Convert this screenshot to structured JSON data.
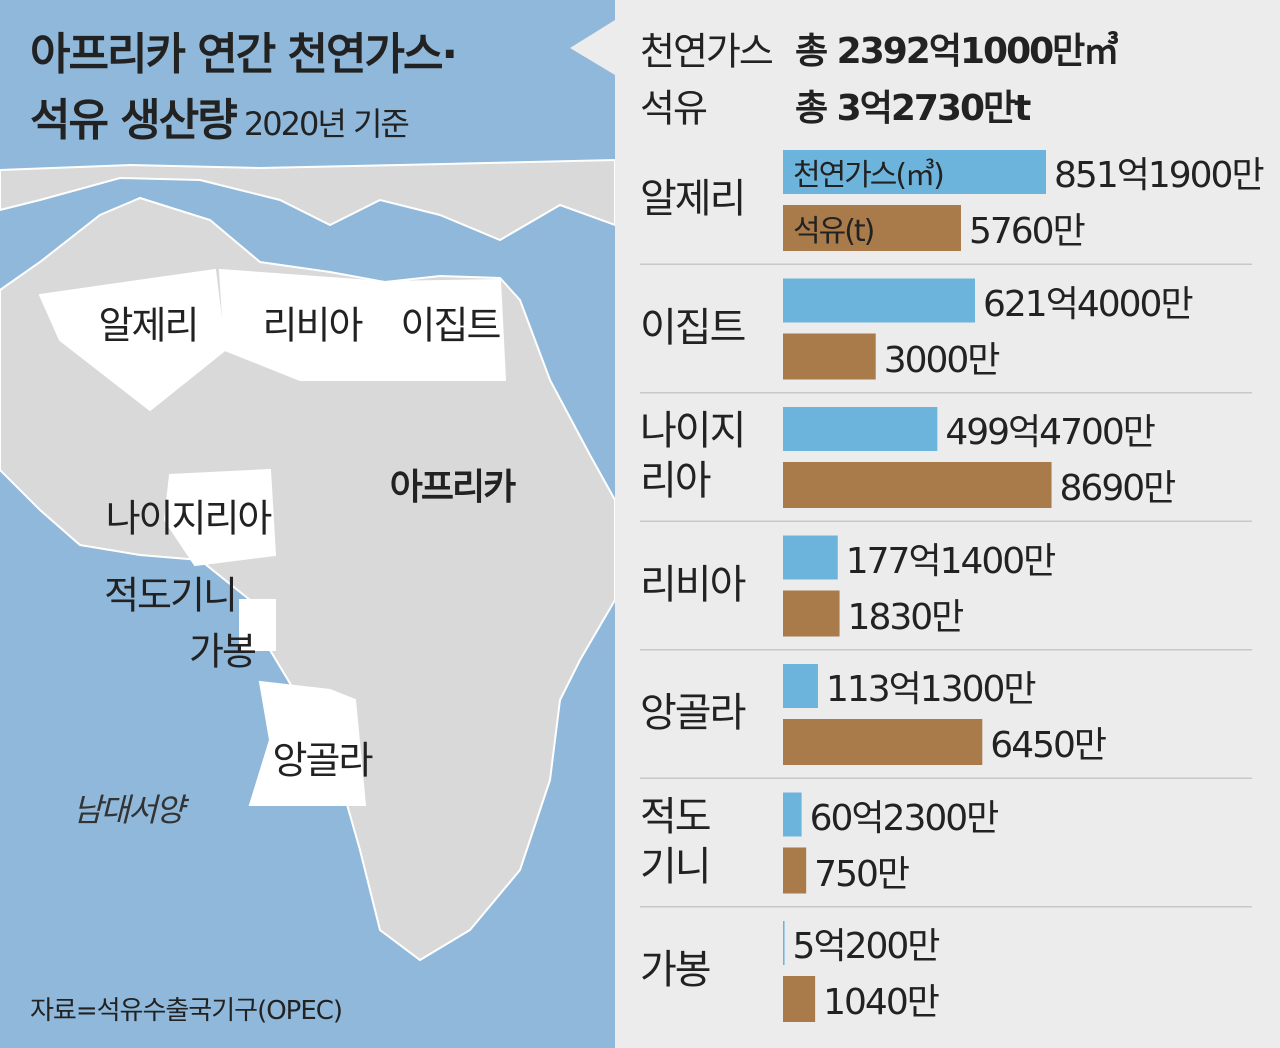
{
  "chart_data": {
    "type": "bar",
    "orientation": "horizontal",
    "title": "아프리카 연간 천연가스·\n석유 생산량",
    "subtitle": "2020년 기준",
    "totals": [
      {
        "label": "천연가스",
        "value": "총 2392억1000만㎥"
      },
      {
        "label": "석유",
        "value": "총 3억2730만t"
      }
    ],
    "categories": [
      "알제리",
      "이집트",
      "나이지\n리아",
      "리비아",
      "앙골라",
      "적도\n기니",
      "가봉"
    ],
    "series": [
      {
        "name": "천연가스(㎥)",
        "color": "#6cb4dc",
        "xlim": [
          0,
          100000000000
        ],
        "values": [
          85119000000,
          62140000000,
          49947000000,
          17714000000,
          11313000000,
          6023000000,
          502000000
        ],
        "value_labels": [
          "851억1900만",
          "621억4000만",
          "499억4700만",
          "177억1400만",
          "113억1300만",
          "60억2300만",
          "5억200만"
        ]
      },
      {
        "name": "석유(t)",
        "color": "#a97a4a",
        "xlim": [
          0,
          100000000
        ],
        "values": [
          57600000,
          30000000,
          86900000,
          18300000,
          64500000,
          7500000,
          10400000
        ],
        "value_labels": [
          "5760만",
          "3000만",
          "8690만",
          "1830만",
          "6450만",
          "750만",
          "1040만"
        ]
      }
    ],
    "map_labels": [
      "알제리",
      "리비아",
      "이집트",
      "아프리카",
      "나이지리아",
      "적도기니",
      "가봉",
      "앙골라",
      "남대서양"
    ],
    "source": "자료=석유수출국기구(OPEC)"
  }
}
